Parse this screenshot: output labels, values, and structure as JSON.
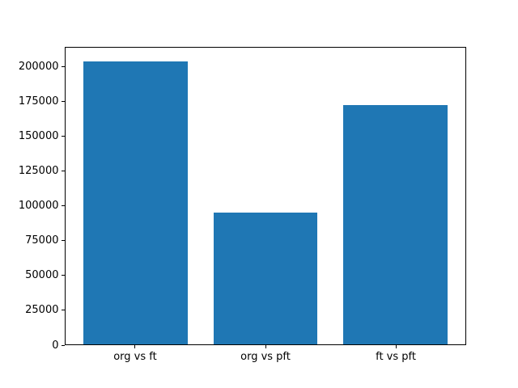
{
  "chart_data": {
    "type": "bar",
    "categories": [
      "org vs ft",
      "org vs pft",
      "ft vs pft"
    ],
    "values": [
      204000,
      95000,
      173000
    ],
    "title": "",
    "xlabel": "",
    "ylabel": "",
    "ylim": [
      0,
      214200
    ],
    "yticks": [
      0,
      25000,
      50000,
      75000,
      100000,
      125000,
      150000,
      175000,
      200000
    ],
    "bar_color": "#1f77b4",
    "spine_color": "#000000",
    "background_color": "#ffffff",
    "grid": false,
    "legend_position": "none"
  }
}
